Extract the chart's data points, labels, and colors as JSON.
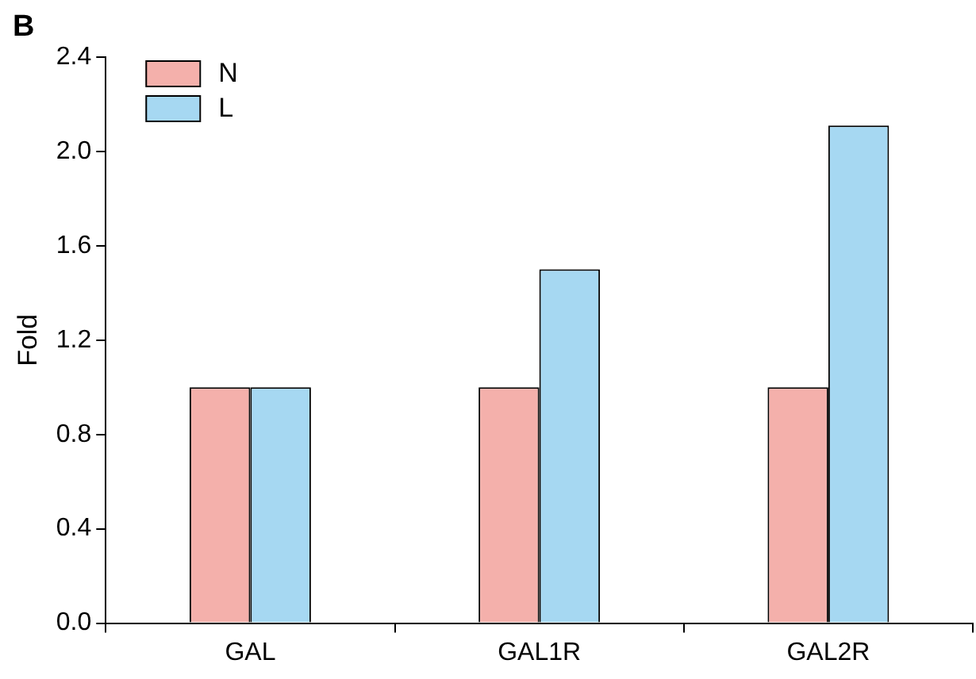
{
  "chart_data": {
    "type": "bar",
    "ylabel": "Fold",
    "categories": [
      "GAL",
      "GAL1R",
      "GAL2R"
    ],
    "series": [
      {
        "name": "N",
        "color": "#f4b0ab",
        "values": [
          1.0,
          1.0,
          1.0
        ]
      },
      {
        "name": "L",
        "color": "#a6d8f2",
        "values": [
          1.0,
          1.5,
          2.11
        ]
      }
    ],
    "ylim": [
      0,
      2.4
    ],
    "yticks": [
      {
        "value": 0,
        "label": "0.0"
      },
      {
        "value": 0.4,
        "label": "0.4"
      },
      {
        "value": 0.8,
        "label": "0.8"
      },
      {
        "value": 1.2,
        "label": "1.2"
      },
      {
        "value": 1.6,
        "label": "1.6"
      },
      {
        "value": 2.0,
        "label": "2.0"
      },
      {
        "value": 2.4,
        "label": "2.4"
      }
    ],
    "grid": false,
    "legend": "top left",
    "annotations": [
      "B"
    ]
  }
}
